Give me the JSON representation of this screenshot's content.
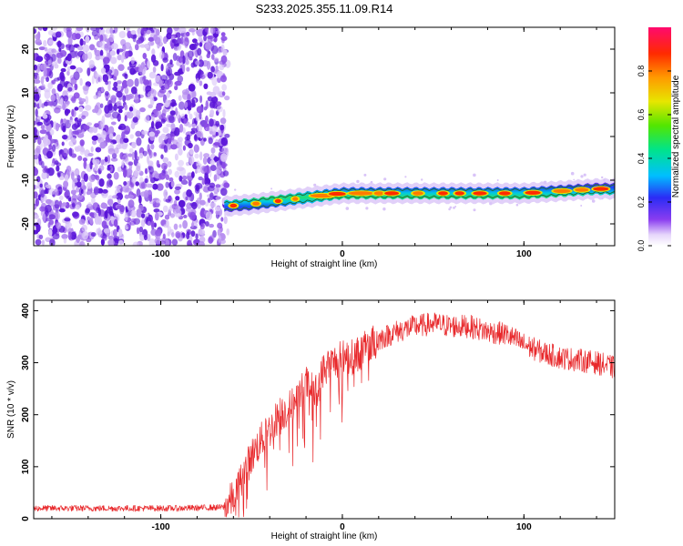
{
  "title": "S233.2025.355.11.09.R14",
  "colors": {
    "snr_line": "#e8282b",
    "band_outline": "#1f6e3a",
    "noise": [
      "#5a14d8",
      "#8a4be6",
      "#b58cf0",
      "#d9c4f8"
    ]
  },
  "colorbar": {
    "label": "Normalized spectral amplitude",
    "ticks": [
      "0.0",
      "0.2",
      "0.4",
      "0.6",
      "0.8"
    ],
    "tick_values": [
      0.0,
      0.2,
      0.4,
      0.6,
      0.8
    ],
    "range": [
      0,
      1
    ]
  },
  "chart_data": [
    {
      "type": "heatmap",
      "title": "S233.2025.355.11.09.R14",
      "xlabel": "Height of straight line (km)",
      "ylabel": "Frequency (Hz)",
      "xlim": [
        -170,
        150
      ],
      "ylim": [
        -25,
        25
      ],
      "xticks": [
        -100,
        0,
        100
      ],
      "xtick_labels": [
        "-100",
        "0",
        "100"
      ],
      "yticks": [
        -20,
        -10,
        0,
        10,
        20
      ],
      "ytick_labels": [
        "-20",
        "-10",
        "0",
        "10",
        "20"
      ],
      "noise_region": [
        -170,
        -65
      ],
      "signal_band": {
        "x": [
          -65,
          -50,
          -40,
          -30,
          -20,
          -10,
          0,
          10,
          20,
          40,
          60,
          80,
          100,
          120,
          140,
          150
        ],
        "freq": [
          -16,
          -15.5,
          -15,
          -14.5,
          -14,
          -13.5,
          -13,
          -13,
          -13,
          -13,
          -13,
          -13,
          -13,
          -12.5,
          -12,
          -12
        ]
      }
    },
    {
      "type": "line",
      "xlabel": "Height of straight line (km)",
      "ylabel": "SNR (10 * v/v)",
      "xlim": [
        -170,
        150
      ],
      "ylim": [
        0,
        420
      ],
      "xticks": [
        -100,
        0,
        100
      ],
      "xtick_labels": [
        "-100",
        "0",
        "100"
      ],
      "yticks": [
        0,
        100,
        200,
        300,
        400
      ],
      "ytick_labels": [
        "0",
        "100",
        "200",
        "300",
        "400"
      ],
      "series": [
        {
          "name": "SNR",
          "x": [
            -170,
            -120,
            -90,
            -65,
            -60,
            -55,
            -50,
            -45,
            -40,
            -35,
            -30,
            -25,
            -20,
            -15,
            -10,
            -5,
            0,
            5,
            10,
            20,
            30,
            40,
            50,
            60,
            70,
            80,
            90,
            100,
            110,
            120,
            130,
            140,
            150
          ],
          "y": [
            20,
            20,
            20,
            22,
            40,
            80,
            120,
            150,
            170,
            200,
            210,
            230,
            260,
            240,
            290,
            300,
            310,
            310,
            320,
            345,
            360,
            370,
            375,
            370,
            370,
            360,
            355,
            335,
            320,
            310,
            305,
            300,
            290
          ]
        }
      ]
    }
  ]
}
